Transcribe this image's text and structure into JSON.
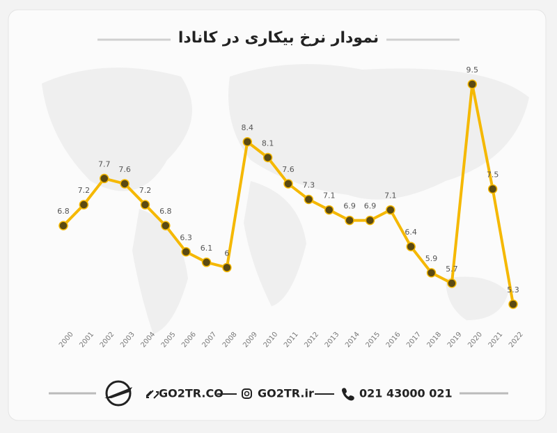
{
  "chart_data": {
    "type": "line",
    "title": "نمودار نرخ بیکاری در کانادا",
    "categories": [
      "2000",
      "2001",
      "2002",
      "2003",
      "2004",
      "2005",
      "2006",
      "2007",
      "2008",
      "2009",
      "2010",
      "2011",
      "2012",
      "2013",
      "2014",
      "2015",
      "2016",
      "2017",
      "2018",
      "2019",
      "2020",
      "2021",
      "2022"
    ],
    "values": [
      6.8,
      7.2,
      7.7,
      7.6,
      7.2,
      6.8,
      6.3,
      6.1,
      6,
      8.4,
      8.1,
      7.6,
      7.3,
      7.1,
      6.9,
      6.9,
      7.1,
      6.4,
      5.9,
      5.7,
      9.5,
      7.5,
      5.3
    ],
    "color": "#f5b800",
    "marker_color": "#5b4a12"
  },
  "footer": {
    "website": "GO2TR.CO",
    "instagram": "GO2TR.ir",
    "phone": "021 43000 021"
  }
}
